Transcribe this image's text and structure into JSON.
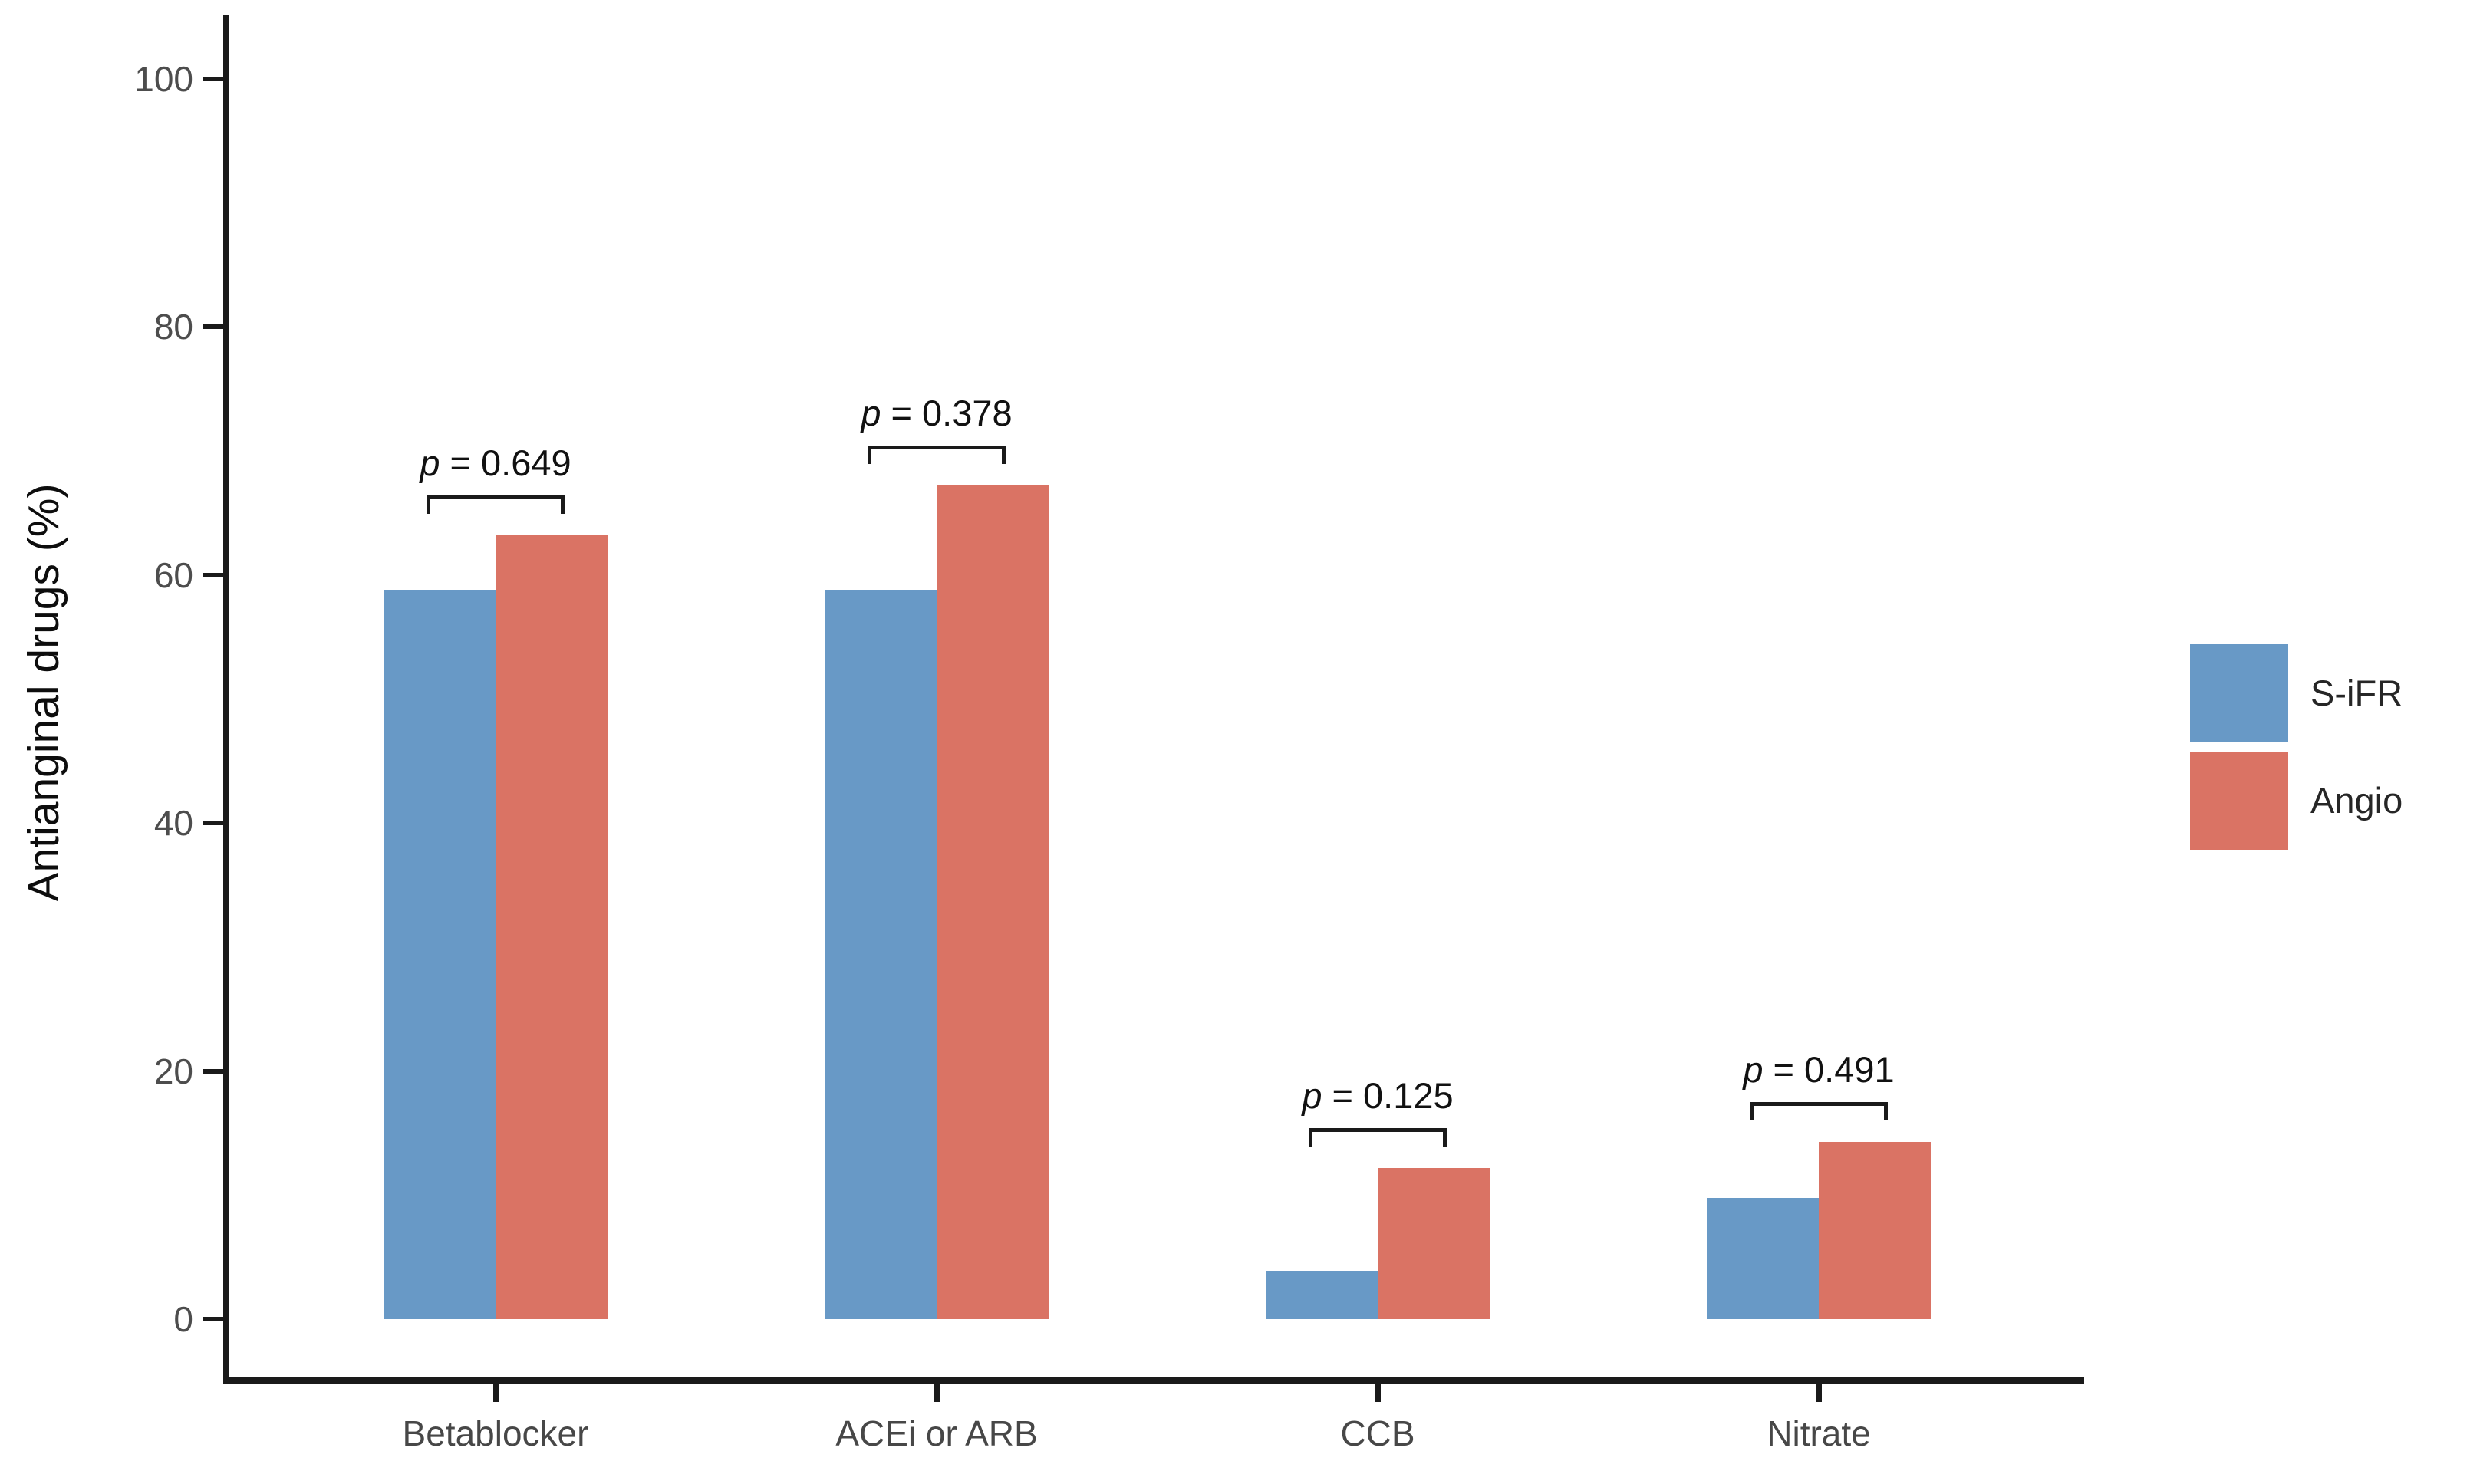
{
  "chart_data": {
    "type": "bar",
    "title": "",
    "xlabel": "",
    "ylabel": "Antianginal drugs (%)",
    "ylim": [
      0,
      100
    ],
    "yticks": [
      0,
      20,
      40,
      60,
      80,
      100
    ],
    "grid": false,
    "legend_position": "right-center",
    "categories": [
      "Betablocker",
      "ACEi or ARB",
      "CCB",
      "Nitrate"
    ],
    "series": [
      {
        "name": "S-iFR",
        "color": "#6899C6",
        "values": [
          58.8,
          58.8,
          3.9,
          9.8
        ]
      },
      {
        "name": "Angio",
        "color": "#DA7364",
        "values": [
          63.2,
          67.2,
          12.2,
          14.3
        ]
      }
    ],
    "annotations": {
      "p_prefix": "p",
      "p_values": [
        "0.649",
        "0.378",
        "0.125",
        "0.491"
      ]
    }
  },
  "legend": {
    "items": [
      {
        "label": "S-iFR",
        "color": "#6899C6"
      },
      {
        "label": "Angio",
        "color": "#DA7364"
      }
    ]
  }
}
